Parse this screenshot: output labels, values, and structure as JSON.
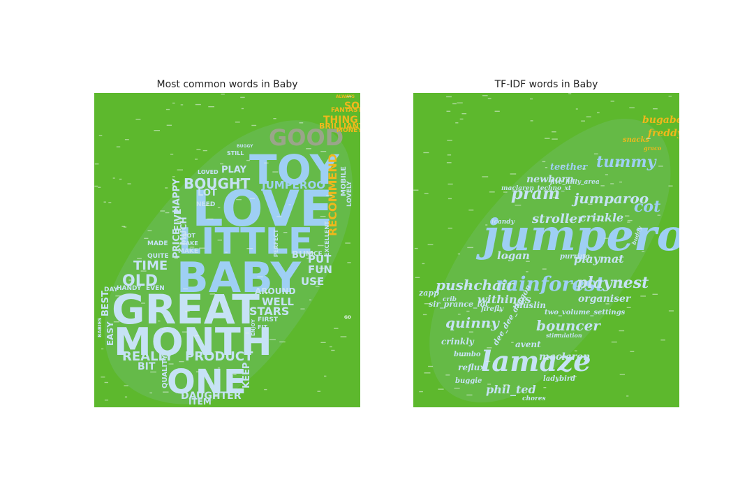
{
  "colors": {
    "background": "#5db82d",
    "shape": "#8cc9cf",
    "word_light": "#c6e2f5",
    "word_blue": "#9ecff4",
    "word_grey": "#9aa58a",
    "word_yellow": "#f0b81c",
    "word_white": "#eef6fb",
    "title_text": "#262626"
  },
  "chart_data": [
    {
      "type": "wordcloud",
      "title": "Most common words in Baby",
      "words": [
        {
          "text": "LOVE",
          "weight": 100,
          "color": "blue"
        },
        {
          "text": "GREAT",
          "weight": 92,
          "color": "light"
        },
        {
          "text": "BABY",
          "weight": 88,
          "color": "blue"
        },
        {
          "text": "MONTH",
          "weight": 85,
          "color": "light"
        },
        {
          "text": "LITTLE",
          "weight": 75,
          "color": "blue"
        },
        {
          "text": "TOY",
          "weight": 74,
          "color": "blue"
        },
        {
          "text": "ONE",
          "weight": 62,
          "color": "light"
        },
        {
          "text": "GOOD",
          "weight": 45,
          "color": "grey"
        },
        {
          "text": "BOUGHT",
          "weight": 30,
          "color": "light"
        },
        {
          "text": "PRODUCT",
          "weight": 26,
          "color": "light"
        },
        {
          "text": "JUMPEROO",
          "weight": 22,
          "color": "blue"
        },
        {
          "text": "REALLY",
          "weight": 22,
          "color": "light"
        },
        {
          "text": "OLD",
          "weight": 24,
          "color": "light"
        },
        {
          "text": "TIME",
          "weight": 22,
          "color": "light"
        },
        {
          "text": "STARS",
          "weight": 20,
          "color": "light"
        },
        {
          "text": "RECOMMEND",
          "weight": 20,
          "color": "yellow"
        },
        {
          "text": "DAUGHTER",
          "weight": 18,
          "color": "light"
        },
        {
          "text": "THING",
          "weight": 18,
          "color": "yellow"
        },
        {
          "text": "SON",
          "weight": 18,
          "color": "yellow"
        },
        {
          "text": "WELL",
          "weight": 18,
          "color": "light"
        },
        {
          "text": "USE",
          "weight": 16,
          "color": "light"
        },
        {
          "text": "FUN",
          "weight": 16,
          "color": "light"
        },
        {
          "text": "PUT",
          "weight": 16,
          "color": "light"
        },
        {
          "text": "BUY",
          "weight": 14,
          "color": "light"
        },
        {
          "text": "PLAY",
          "weight": 15,
          "color": "light"
        },
        {
          "text": "LOT",
          "weight": 14,
          "color": "light"
        },
        {
          "text": "HAPPY",
          "weight": 14,
          "color": "light"
        },
        {
          "text": "PRICE",
          "weight": 14,
          "color": "light"
        },
        {
          "text": "FIVE",
          "weight": 14,
          "color": "light"
        },
        {
          "text": "BEST",
          "weight": 14,
          "color": "light"
        },
        {
          "text": "EASY",
          "weight": 13,
          "color": "light"
        },
        {
          "text": "BIT",
          "weight": 14,
          "color": "light"
        },
        {
          "text": "ITEM",
          "weight": 13,
          "color": "light"
        },
        {
          "text": "KEEP",
          "weight": 13,
          "color": "light"
        },
        {
          "text": "MUCH",
          "weight": 13,
          "color": "light"
        },
        {
          "text": "AROUND",
          "weight": 12,
          "color": "light"
        },
        {
          "text": "BRILLIANT",
          "weight": 11,
          "color": "yellow"
        },
        {
          "text": "FANTASTIC",
          "weight": 10,
          "color": "yellow"
        },
        {
          "text": "MONEY",
          "weight": 10,
          "color": "yellow"
        },
        {
          "text": "MOBILE",
          "weight": 11,
          "color": "light"
        },
        {
          "text": "LOVELY",
          "weight": 9,
          "color": "light"
        },
        {
          "text": "QUALITY",
          "weight": 10,
          "color": "light"
        },
        {
          "text": "MADE",
          "weight": 9,
          "color": "light"
        },
        {
          "text": "QUITE",
          "weight": 9,
          "color": "light"
        },
        {
          "text": "HANDY",
          "weight": 9,
          "color": "light"
        },
        {
          "text": "DAY",
          "weight": 9,
          "color": "light"
        },
        {
          "text": "EVEN",
          "weight": 9,
          "color": "light"
        },
        {
          "text": "MAKE",
          "weight": 9,
          "color": "light"
        },
        {
          "text": "NEED",
          "weight": 9,
          "color": "light"
        },
        {
          "text": "TAKE",
          "weight": 8,
          "color": "light"
        },
        {
          "text": "GOT",
          "weight": 8,
          "color": "light"
        },
        {
          "text": "NICE",
          "weight": 9,
          "color": "light"
        },
        {
          "text": "FIRST",
          "weight": 9,
          "color": "light"
        },
        {
          "text": "FIT",
          "weight": 8,
          "color": "light"
        },
        {
          "text": "LOVED",
          "weight": 8,
          "color": "light"
        },
        {
          "text": "STILL",
          "weight": 8,
          "color": "light"
        },
        {
          "text": "GO",
          "weight": 6,
          "color": "white"
        },
        {
          "text": "BUGGY",
          "weight": 6,
          "color": "light"
        },
        {
          "text": "PERFECT",
          "weight": 8,
          "color": "light"
        },
        {
          "text": "EXCELLENT",
          "weight": 8,
          "color": "light"
        },
        {
          "text": "ENJOY",
          "weight": 7,
          "color": "light"
        },
        {
          "text": "BABIES",
          "weight": 7,
          "color": "light"
        },
        {
          "text": "ALWAYS",
          "weight": 6,
          "color": "yellow"
        }
      ]
    },
    {
      "type": "wordcloud",
      "title": "TF-IDF words in Baby",
      "words": [
        {
          "text": "jumperoo",
          "weight": 100,
          "color": "blue"
        },
        {
          "text": "lamaze",
          "weight": 66,
          "color": "light"
        },
        {
          "text": "rainforest",
          "weight": 40,
          "color": "blue"
        },
        {
          "text": "jumparoo",
          "weight": 34,
          "color": "light"
        },
        {
          "text": "pram",
          "weight": 36,
          "color": "light"
        },
        {
          "text": "tummy",
          "weight": 34,
          "color": "blue"
        },
        {
          "text": "playnest",
          "weight": 32,
          "color": "light"
        },
        {
          "text": "bouncer",
          "weight": 30,
          "color": "light"
        },
        {
          "text": "quinny",
          "weight": 28,
          "color": "light"
        },
        {
          "text": "pushchair",
          "weight": 28,
          "color": "light"
        },
        {
          "text": "stroller",
          "weight": 26,
          "color": "light"
        },
        {
          "text": "crinkle",
          "weight": 24,
          "color": "light"
        },
        {
          "text": "playmat",
          "weight": 24,
          "color": "light"
        },
        {
          "text": "phil_ted",
          "weight": 22,
          "color": "light"
        },
        {
          "text": "withings",
          "weight": 22,
          "color": "light"
        },
        {
          "text": "cot",
          "weight": 24,
          "color": "blue"
        },
        {
          "text": "logan",
          "weight": 20,
          "color": "light"
        },
        {
          "text": "organiser",
          "weight": 20,
          "color": "light"
        },
        {
          "text": "newborn",
          "weight": 18,
          "color": "light"
        },
        {
          "text": "teether",
          "weight": 18,
          "color": "blue"
        },
        {
          "text": "maclaren",
          "weight": 18,
          "color": "light"
        },
        {
          "text": "muslin",
          "weight": 16,
          "color": "light"
        },
        {
          "text": "reflux",
          "weight": 16,
          "color": "light"
        },
        {
          "text": "crinkly",
          "weight": 16,
          "color": "light"
        },
        {
          "text": "avent",
          "weight": 16,
          "color": "light"
        },
        {
          "text": "bugaboo",
          "weight": 16,
          "color": "yellow"
        },
        {
          "text": "freddy",
          "weight": 16,
          "color": "yellow"
        },
        {
          "text": "snacks",
          "weight": 12,
          "color": "yellow"
        },
        {
          "text": "graco",
          "weight": 10,
          "color": "yellow"
        },
        {
          "text": "sir_prance_lot",
          "weight": 14,
          "color": "light"
        },
        {
          "text": "dee_dee_dragon",
          "weight": 14,
          "color": "light"
        },
        {
          "text": "two_volume_settings",
          "weight": 12,
          "color": "light"
        },
        {
          "text": "ladybird",
          "weight": 12,
          "color": "light"
        },
        {
          "text": "firefly",
          "weight": 12,
          "color": "light"
        },
        {
          "text": "buggie",
          "weight": 12,
          "color": "light"
        },
        {
          "text": "bumbo",
          "weight": 12,
          "color": "light"
        },
        {
          "text": "purring",
          "weight": 12,
          "color": "light"
        },
        {
          "text": "icandy",
          "weight": 12,
          "color": "light"
        },
        {
          "text": "five_hilly_area",
          "weight": 12,
          "color": "light"
        },
        {
          "text": "maclaren_techno_xt",
          "weight": 12,
          "color": "light"
        },
        {
          "text": "chores",
          "weight": 10,
          "color": "light"
        },
        {
          "text": "stimulation",
          "weight": 10,
          "color": "light"
        },
        {
          "text": "zapp",
          "weight": 12,
          "color": "light"
        },
        {
          "text": "crib",
          "weight": 10,
          "color": "light"
        },
        {
          "text": "buddy",
          "weight": 10,
          "color": "light"
        }
      ]
    }
  ]
}
